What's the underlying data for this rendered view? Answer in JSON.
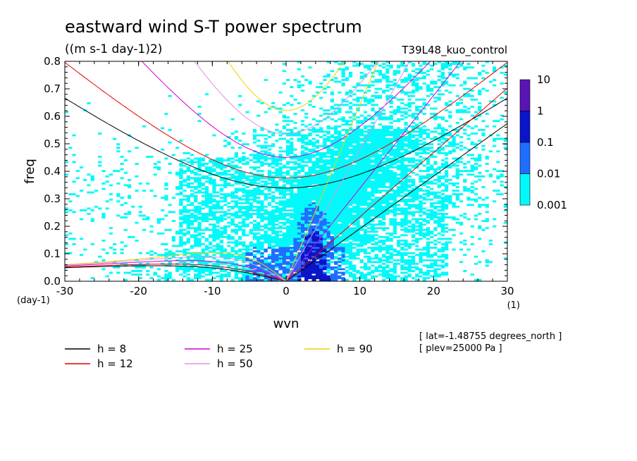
{
  "chart_data": {
    "type": "heatmap",
    "title": "eastward wind S-T power spectrum",
    "subtitle": "((m s-1 day-1)2)",
    "run_label": "T39L48_kuo_control",
    "xlabel": "wvn",
    "ylabel": "freq",
    "x_unit": "(1)",
    "y_unit": "(day-1)",
    "xlim": [
      -30,
      30
    ],
    "ylim": [
      0,
      0.8
    ],
    "x_ticks": [
      -30,
      -20,
      -10,
      0,
      10,
      20,
      30
    ],
    "x_tick_labels": [
      "-30",
      "-20",
      "-10",
      "0",
      "10",
      "20",
      "30"
    ],
    "y_ticks": [
      0,
      0.1,
      0.2,
      0.3,
      0.4,
      0.5,
      0.6,
      0.7,
      0.8
    ],
    "y_tick_labels": [
      "0.0",
      "0.1",
      "0.2",
      "0.3",
      "0.4",
      "0.5",
      "0.6",
      "0.7",
      "0.8"
    ],
    "colorbar": {
      "levels": [
        "10",
        "1",
        "0.1",
        "0.01",
        "0.001"
      ],
      "colors": [
        "#5a14b4",
        "#0a14c8",
        "#1e6eff",
        "#00fafa"
      ],
      "scale": "log"
    },
    "contour_colors": [
      "#00fafa",
      "#1e6eff",
      "#0a14c8"
    ],
    "dispersion_curves": [
      {
        "name": "h = 8",
        "h": 8,
        "color": "#000000"
      },
      {
        "name": "h = 12",
        "h": 12,
        "color": "#e00000"
      },
      {
        "name": "h = 25",
        "h": 25,
        "color": "#d000d0"
      },
      {
        "name": "h = 50",
        "h": 50,
        "color": "#e090e0"
      },
      {
        "name": "h = 90",
        "h": 90,
        "color": "#f0d000"
      }
    ],
    "legend_placement": "bottom-left",
    "annotations": [
      "[ lat=-1.48755 degrees_north ]",
      "[ plev=25000 Pa ]"
    ],
    "grid": false
  }
}
